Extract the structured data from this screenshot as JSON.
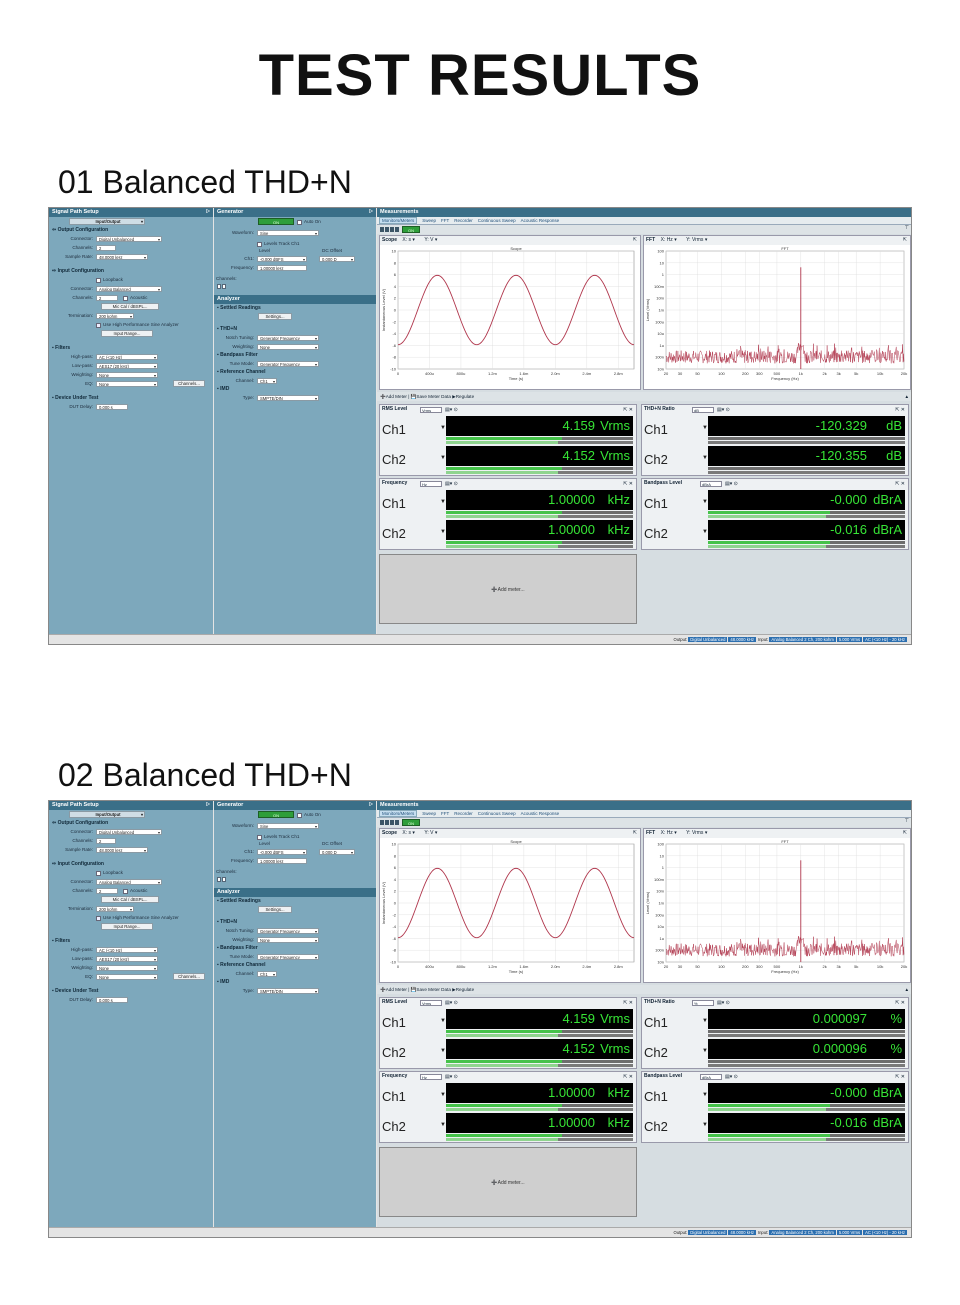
{
  "title": "TEST RESULTS",
  "sections": [
    {
      "heading": "01 Balanced THD+N",
      "thd_unit": "dB",
      "readings": {
        "rms": {
          "ch1": "4.159",
          "ch2": "4.152",
          "unit": "Vrms"
        },
        "thd": {
          "ch1": "-120.329",
          "ch2": "-120.355",
          "unit": "dB"
        },
        "freq": {
          "ch1": "1.00000",
          "ch2": "1.00000",
          "unit": "kHz"
        },
        "bp": {
          "ch1": "-0.000",
          "ch2": "-0.016",
          "unit": "dBrA"
        }
      }
    },
    {
      "heading": "02 Balanced THD+N",
      "thd_unit": "%",
      "readings": {
        "rms": {
          "ch1": "4.159",
          "ch2": "4.152",
          "unit": "Vrms"
        },
        "thd": {
          "ch1": "0.000097",
          "ch2": "0.000096",
          "unit": "%"
        },
        "freq": {
          "ch1": "1.00000",
          "ch2": "1.00000",
          "unit": "kHz"
        },
        "bp": {
          "ch1": "-0.000",
          "ch2": "-0.016",
          "unit": "dBrA"
        }
      }
    }
  ],
  "ui": {
    "sps_title": "Signal Path Setup",
    "pin": "ᐅ",
    "io": "Input/Output",
    "out_cfg": "Output Configuration",
    "connector": "Connector:",
    "conn_out": "Digital Unbalanced",
    "channels": "Channels:",
    "ch_out": "2",
    "sample_rate": "Sample Rate:",
    "sr_val": "48.0000 kHz",
    "in_cfg": "Input Configuration",
    "loopback": "Loopback",
    "conn_in": "Analog Balanced",
    "ch_in": "2",
    "acoustic": "Acoustic",
    "mic_cal": "Mic Cal / dBSPL...",
    "termination": "Termination:",
    "term_val": "200 kohm",
    "hp_sine": "Use High Performance Sine Analyzer",
    "input_range": "Input Range...",
    "filters": "Filters",
    "highpass": "High-pass:",
    "hp_val": "AC (<10 Hz)",
    "lowpass": "Low-pass:",
    "lp_val": "AES17 (20 kHz)",
    "weighting": "Weighting:",
    "w_val": "None",
    "eq": "EQ:",
    "eq_val": "None",
    "channels_btn": "Channels...",
    "dut": "Device Under Test",
    "dut_delay": "DUT Delay:",
    "dut_val": "0.000 s",
    "gen_title": "Generator",
    "on": "ON",
    "auto_on": "Auto On",
    "waveform": "Waveform:",
    "wf_val": "Sine",
    "levels_track": "Levels Track Ch1",
    "level": "Level",
    "dc_offset": "DC Offset",
    "ch1": "Ch1:",
    "level_val": "-0.000 dBFS",
    "dc_val": "0.000 D",
    "frequency": "Frequency:",
    "freq_val": "1.00000 kHz",
    "channels_g": "Channels:",
    "analyzer": "Analyzer",
    "settled": "Settled Readings",
    "settings": "Settings...",
    "thdn": "THD+N",
    "notch": "Notch Tuning:",
    "notch_val": "Generator Frequency",
    "weighting2": "Weighting:",
    "w2_val": "None",
    "bpf": "Bandpass Filter",
    "tune": "Tune Mode:",
    "tune_val": "Generator Frequency",
    "refch": "Reference Channel",
    "channel": "Channel:",
    "refch_val": "Ch1",
    "imd": "IMD",
    "type": "Type:",
    "type_val": "SMPTE/DIN",
    "meas_title": "Measurements",
    "tabs": [
      "Monitors/Meters",
      "Sweep",
      "FFT",
      "Recorder",
      "Continuous Sweep",
      "Acoustic Response"
    ],
    "scope": "Scope",
    "scope_x": "s",
    "scope_y": "V",
    "scope_plot_title": "Scope",
    "scope_ylabel": "Instantaneous Level (V)",
    "scope_xlabel": "Time (s)",
    "scope_yticks": [
      "10",
      "8",
      "6",
      "4",
      "2",
      "0",
      "-2",
      "-4",
      "-6",
      "-8",
      "-10"
    ],
    "scope_xticks": [
      "0",
      "400u",
      "800u",
      "1.2m",
      "1.6m",
      "2.0m",
      "2.4m",
      "2.8m"
    ],
    "fft": "FFT",
    "fft_x": "Hz",
    "fft_y": "Vrms",
    "fft_plot_title": "FFT",
    "fft_ylabel": "Level (Vrms)",
    "fft_xlabel": "Frequency (Hz)",
    "fft_yticks": [
      "100",
      "10",
      "1",
      "100m",
      "10m",
      "1m",
      "100u",
      "10u",
      "1u",
      "100n",
      "10n"
    ],
    "fft_xticks": [
      "20",
      "30",
      "50",
      "100",
      "200",
      "300",
      "500",
      "1k",
      "2k",
      "3k",
      "5k",
      "10k",
      "20k"
    ],
    "add_meter": "Add Meter",
    "save_meter": "Save Meter Data",
    "regulate": "Regulate",
    "rms_level": "RMS Level",
    "rms_unit": "Vrms",
    "thdn_ratio": "THD+N Ratio",
    "freq_meter": "Frequency",
    "freq_unit": "Hz",
    "bp_level": "Bandpass Level",
    "bp_unit": "dBrA",
    "ch1_lbl": "Ch1",
    "ch2_lbl": "Ch2",
    "add_meter_big": "Add meter...",
    "output": "Output:",
    "st_out": "Digital Unbalanced",
    "st_sr": "48.0000 kHz",
    "input": "Input:",
    "st_in": "Analog Balanced 2 Ch, 200 kohm",
    "st_range": "5.000 Vrms",
    "st_filter": "AC (<10 Hz) - 20 kHz"
  },
  "chart_data": [
    {
      "type": "line",
      "title": "Scope",
      "xlabel": "Time (s)",
      "ylabel": "Instantaneous Level (V)",
      "ylim": [
        -10,
        10
      ],
      "xlim": [
        0,
        0.003
      ],
      "waveform": "sine",
      "frequency_hz": 1000,
      "amplitude": 5.88,
      "series": [
        {
          "name": "Ch1"
        }
      ]
    },
    {
      "type": "line",
      "title": "FFT",
      "xlabel": "Frequency (Hz)",
      "ylabel": "Level (Vrms)",
      "scale": "log",
      "xlim": [
        20,
        20000
      ],
      "ylim": [
        1e-08,
        100
      ],
      "peak": {
        "x": 1000,
        "y": 4.159
      },
      "noise_floor": 3e-08
    }
  ]
}
